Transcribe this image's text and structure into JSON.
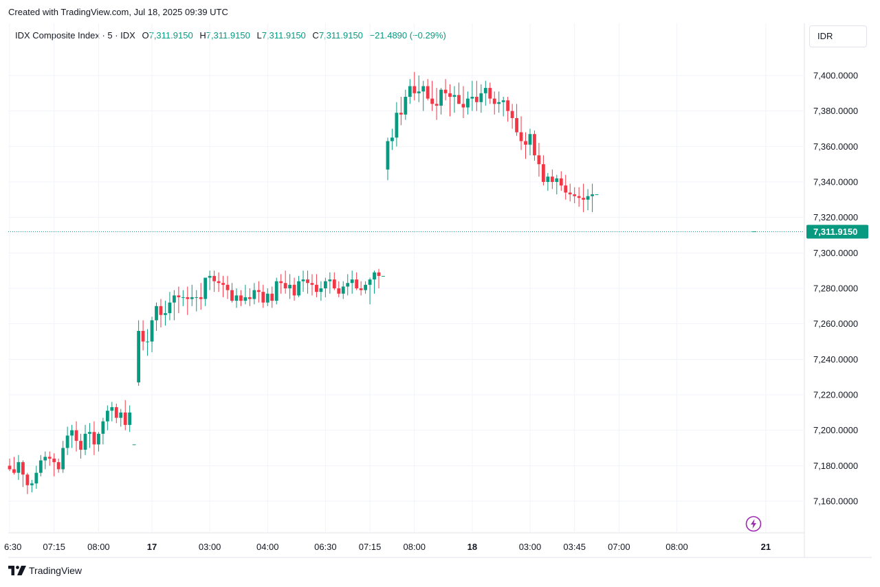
{
  "header": {
    "created_with": "Created with TradingView.com, Jul 18, 2025 09:39 UTC"
  },
  "legend": {
    "symbol": "IDX Composite Index · 5 · IDX",
    "o_label": "O",
    "o_value": "7,311.9150",
    "h_label": "H",
    "h_value": "7,311.9150",
    "l_label": "L",
    "l_value": "7,311.9150",
    "c_label": "C",
    "c_value": "7,311.9150",
    "change": "−21.4890 (−0.29%)"
  },
  "currency": "IDR",
  "brand": "TradingView",
  "icons": {
    "logo": "tradingview-logo-icon",
    "bolt": "lightning-bolt-icon"
  },
  "colors": {
    "up": "#089981",
    "down": "#f23645",
    "grid": "#f0f3fa",
    "last_price": "#089981"
  },
  "chart_data": {
    "type": "candlestick",
    "y_label_side": "right",
    "ylim": [
      7142,
      7412
    ],
    "y_ticks": [
      "7,160.0000",
      "7,180.0000",
      "7,200.0000",
      "7,220.0000",
      "7,240.0000",
      "7,260.0000",
      "7,280.0000",
      "7,300.0000",
      "7,320.0000",
      "7,340.0000",
      "7,360.0000",
      "7,380.0000",
      "7,400.0000"
    ],
    "y_tick_values": [
      7160,
      7180,
      7200,
      7220,
      7240,
      7260,
      7280,
      7300,
      7320,
      7340,
      7360,
      7380,
      7400
    ],
    "x_ticks": [
      "6:30",
      "07:15",
      "08:00",
      "17",
      "03:00",
      "04:00",
      "06:30",
      "07:15",
      "08:00",
      "18",
      "03:00",
      "03:45",
      "07:00",
      "08:00",
      "21"
    ],
    "x_tick_bar_index": [
      0,
      10,
      20,
      32,
      45,
      58,
      71,
      81,
      91,
      104,
      117,
      127,
      137,
      150,
      170
    ],
    "last_price": 7311.915,
    "last_price_label": "7,311.9150",
    "candles": [
      [
        7180,
        7184,
        7177,
        7178
      ],
      [
        7178,
        7185,
        7175,
        7176
      ],
      [
        7176,
        7186,
        7172,
        7182
      ],
      [
        7182,
        7183,
        7168,
        7175
      ],
      [
        7175,
        7176,
        7164,
        7169
      ],
      [
        7169,
        7172,
        7165,
        7170
      ],
      [
        7170,
        7180,
        7167,
        7176
      ],
      [
        7176,
        7186,
        7174,
        7183
      ],
      [
        7183,
        7188,
        7178,
        7185
      ],
      [
        7185,
        7188,
        7180,
        7184
      ],
      [
        7184,
        7187,
        7174,
        7182
      ],
      [
        7182,
        7184,
        7176,
        7178
      ],
      [
        7178,
        7194,
        7176,
        7190
      ],
      [
        7190,
        7202,
        7186,
        7197
      ],
      [
        7197,
        7203,
        7190,
        7200
      ],
      [
        7200,
        7205,
        7188,
        7194
      ],
      [
        7194,
        7198,
        7184,
        7189
      ],
      [
        7189,
        7203,
        7186,
        7198
      ],
      [
        7198,
        7204,
        7190,
        7199
      ],
      [
        7199,
        7205,
        7186,
        7192
      ],
      [
        7192,
        7199,
        7188,
        7198
      ],
      [
        7198,
        7207,
        7192,
        7205
      ],
      [
        7205,
        7214,
        7200,
        7211
      ],
      [
        7211,
        7216,
        7205,
        7213
      ],
      [
        7213,
        7215,
        7204,
        7207
      ],
      [
        7207,
        7212,
        7202,
        7210
      ],
      [
        7210,
        7217,
        7200,
        7203
      ],
      [
        7203,
        7214,
        7199,
        7210
      ],
      [
        7192,
        7192,
        7192,
        7192
      ],
      [
        7227,
        7262,
        7225,
        7256
      ],
      [
        7256,
        7262,
        7245,
        7250
      ],
      [
        7250,
        7257,
        7242,
        7250
      ],
      [
        7250,
        7264,
        7244,
        7262
      ],
      [
        7262,
        7272,
        7256,
        7270
      ],
      [
        7270,
        7274,
        7258,
        7265
      ],
      [
        7265,
        7273,
        7259,
        7266
      ],
      [
        7266,
        7278,
        7262,
        7272
      ],
      [
        7272,
        7279,
        7262,
        7276
      ],
      [
        7276,
        7281,
        7266,
        7275
      ],
      [
        7275,
        7279,
        7270,
        7275
      ],
      [
        7275,
        7281,
        7265,
        7274
      ],
      [
        7274,
        7282,
        7270,
        7275
      ],
      [
        7275,
        7279,
        7267,
        7275
      ],
      [
        7275,
        7283,
        7268,
        7274
      ],
      [
        7274,
        7285,
        7270,
        7286
      ],
      [
        7286,
        7290,
        7279,
        7287
      ],
      [
        7287,
        7290,
        7278,
        7284
      ],
      [
        7284,
        7289,
        7278,
        7283
      ],
      [
        7283,
        7287,
        7275,
        7282
      ],
      [
        7282,
        7287,
        7274,
        7279
      ],
      [
        7279,
        7283,
        7272,
        7273
      ],
      [
        7273,
        7280,
        7269,
        7276
      ],
      [
        7276,
        7279,
        7270,
        7273
      ],
      [
        7273,
        7282,
        7271,
        7275
      ],
      [
        7275,
        7280,
        7270,
        7274
      ],
      [
        7274,
        7283,
        7271,
        7279
      ],
      [
        7279,
        7284,
        7272,
        7278
      ],
      [
        7278,
        7282,
        7269,
        7272
      ],
      [
        7272,
        7280,
        7270,
        7277
      ],
      [
        7277,
        7281,
        7269,
        7273
      ],
      [
        7273,
        7286,
        7271,
        7284
      ],
      [
        7284,
        7288,
        7277,
        7283
      ],
      [
        7283,
        7290,
        7277,
        7280
      ],
      [
        7280,
        7288,
        7274,
        7282
      ],
      [
        7282,
        7286,
        7273,
        7276
      ],
      [
        7276,
        7287,
        7275,
        7284
      ],
      [
        7284,
        7290,
        7278,
        7285
      ],
      [
        7285,
        7290,
        7277,
        7283
      ],
      [
        7283,
        7288,
        7276,
        7282
      ],
      [
        7282,
        7288,
        7275,
        7278
      ],
      [
        7278,
        7284,
        7273,
        7280
      ],
      [
        7280,
        7286,
        7275,
        7284
      ],
      [
        7284,
        7289,
        7277,
        7285
      ],
      [
        7285,
        7289,
        7279,
        7280
      ],
      [
        7280,
        7284,
        7275,
        7277
      ],
      [
        7277,
        7284,
        7274,
        7281
      ],
      [
        7281,
        7288,
        7276,
        7283
      ],
      [
        7283,
        7290,
        7277,
        7285
      ],
      [
        7285,
        7289,
        7279,
        7280
      ],
      [
        7280,
        7284,
        7276,
        7279
      ],
      [
        7279,
        7284,
        7277,
        7282
      ],
      [
        7282,
        7286,
        7271,
        7285
      ],
      [
        7285,
        7290,
        7277,
        7289
      ],
      [
        7289,
        7291,
        7280,
        7287
      ],
      [
        7287,
        7287,
        7287,
        7287
      ],
      [
        7347,
        7365,
        7341,
        7363
      ],
      [
        7363,
        7370,
        7358,
        7365
      ],
      [
        7365,
        7385,
        7360,
        7379
      ],
      [
        7379,
        7388,
        7372,
        7378
      ],
      [
        7378,
        7392,
        7375,
        7388
      ],
      [
        7388,
        7398,
        7384,
        7394
      ],
      [
        7394,
        7402,
        7386,
        7390
      ],
      [
        7390,
        7400,
        7385,
        7391
      ],
      [
        7391,
        7397,
        7380,
        7394
      ],
      [
        7394,
        7398,
        7386,
        7387
      ],
      [
        7387,
        7397,
        7380,
        7384
      ],
      [
        7384,
        7393,
        7375,
        7383
      ],
      [
        7383,
        7393,
        7378,
        7392
      ],
      [
        7392,
        7398,
        7386,
        7390
      ],
      [
        7390,
        7395,
        7377,
        7388
      ],
      [
        7388,
        7394,
        7379,
        7389
      ],
      [
        7389,
        7396,
        7384,
        7384
      ],
      [
        7384,
        7394,
        7376,
        7382
      ],
      [
        7382,
        7391,
        7378,
        7387
      ],
      [
        7387,
        7397,
        7380,
        7388
      ],
      [
        7388,
        7397,
        7380,
        7385
      ],
      [
        7385,
        7395,
        7379,
        7390
      ],
      [
        7390,
        7397,
        7383,
        7393
      ],
      [
        7393,
        7396,
        7384,
        7387
      ],
      [
        7387,
        7391,
        7378,
        7384
      ],
      [
        7384,
        7391,
        7379,
        7385
      ],
      [
        7385,
        7388,
        7377,
        7386
      ],
      [
        7386,
        7388,
        7374,
        7380
      ],
      [
        7380,
        7384,
        7370,
        7376
      ],
      [
        7376,
        7384,
        7366,
        7368
      ],
      [
        7368,
        7377,
        7358,
        7363
      ],
      [
        7363,
        7368,
        7353,
        7361
      ],
      [
        7361,
        7370,
        7355,
        7367
      ],
      [
        7367,
        7369,
        7352,
        7355
      ],
      [
        7355,
        7362,
        7343,
        7350
      ],
      [
        7350,
        7355,
        7338,
        7340
      ],
      [
        7340,
        7345,
        7335,
        7343
      ],
      [
        7343,
        7347,
        7336,
        7340
      ],
      [
        7340,
        7344,
        7333,
        7342
      ],
      [
        7342,
        7346,
        7335,
        7338
      ],
      [
        7338,
        7344,
        7330,
        7334
      ],
      [
        7334,
        7339,
        7329,
        7333
      ],
      [
        7333,
        7337,
        7328,
        7332
      ],
      [
        7332,
        7337,
        7326,
        7331
      ],
      [
        7331,
        7339,
        7323,
        7330
      ],
      [
        7330,
        7336,
        7324,
        7332
      ],
      [
        7332,
        7339,
        7323,
        7333
      ],
      [
        7333,
        7333,
        7333,
        7333
      ]
    ]
  }
}
